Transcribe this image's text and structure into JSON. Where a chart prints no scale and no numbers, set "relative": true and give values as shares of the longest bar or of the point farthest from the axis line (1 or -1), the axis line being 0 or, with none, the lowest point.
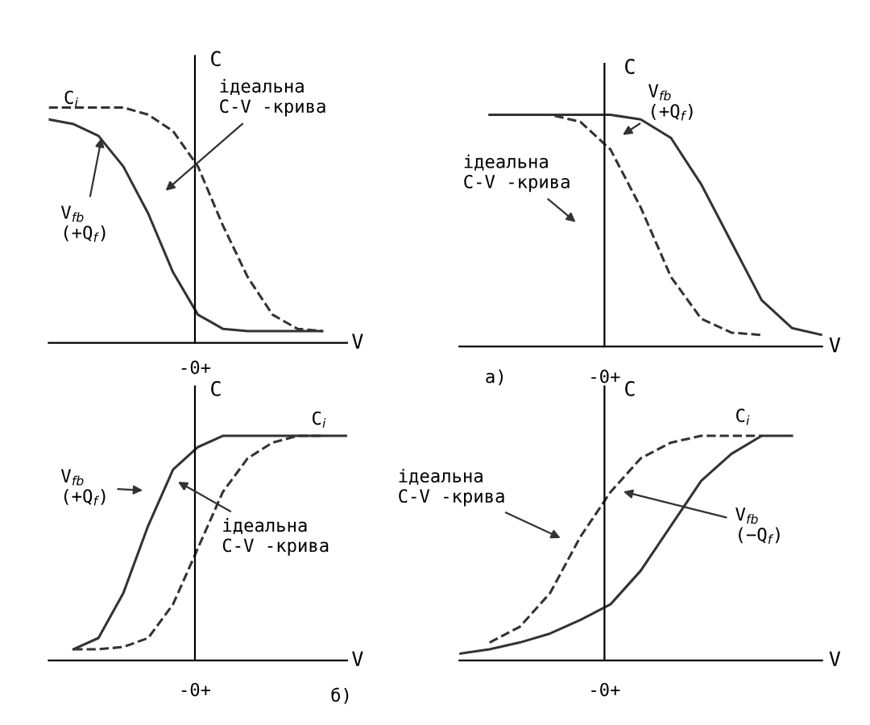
{
  "chart_data": [
    {
      "type": "line",
      "relative": true,
      "xlabel": "V",
      "ylabel": "C",
      "tick_labels": false,
      "categories": [
        null,
        null,
        null,
        null,
        null,
        null,
        null,
        null,
        null,
        null,
        null,
        null,
        null
      ],
      "series": [
        {
          "color": "#333333",
          "line_style": "dashed",
          "values": [
            1,
            1,
            1,
            1,
            0.97,
            0.9,
            0.75,
            0.5,
            0.28,
            0.12,
            0.06,
            0.05,
            null
          ]
        },
        {
          "color": "#333333",
          "line_style": "solid",
          "values": [
            0.95,
            0.93,
            0.88,
            0.75,
            0.55,
            0.3,
            0.12,
            0.06,
            0.05,
            0.05,
            0.05,
            0.05,
            null
          ]
        }
      ],
      "annotations": [
        "C$_{i}$",
        "ідеальна\nC-V -крива",
        "V$_{fb}$\n(+Q$_{f}$)",
        "-0+"
      ]
    },
    {
      "type": "line",
      "relative": true,
      "xlabel": "V",
      "ylabel": "C",
      "tick_labels": false,
      "categories": [
        null,
        null,
        null,
        null,
        null,
        null,
        null,
        null,
        null,
        null,
        null,
        null,
        null
      ],
      "series": [
        {
          "color": "#333333",
          "line_style": "dashed",
          "values": [
            null,
            1,
            1,
            1,
            0.97,
            0.85,
            0.6,
            0.3,
            0.12,
            0.06,
            0.05,
            null,
            null
          ]
        },
        {
          "color": "#333333",
          "line_style": "solid",
          "values": [
            null,
            1,
            1,
            1,
            1,
            1,
            0.98,
            0.9,
            0.7,
            0.45,
            0.2,
            0.08,
            0.05
          ]
        }
      ],
      "annotations": [
        "V$_{fb}$\n(+Q$_{f}$)",
        "ідеальна\nC-V -крива",
        "-0+",
        "а)"
      ]
    },
    {
      "type": "line",
      "relative": true,
      "xlabel": "V",
      "ylabel": "C",
      "tick_labels": false,
      "categories": [
        null,
        null,
        null,
        null,
        null,
        null,
        null,
        null,
        null,
        null,
        null,
        null,
        null
      ],
      "series": [
        {
          "color": "#333333",
          "line_style": "solid",
          "values": [
            null,
            0.05,
            0.1,
            0.3,
            0.6,
            0.85,
            0.95,
            1,
            1,
            1,
            1,
            1,
            1
          ]
        },
        {
          "color": "#333333",
          "line_style": "dashed",
          "values": [
            null,
            0.05,
            0.05,
            0.06,
            0.1,
            0.25,
            0.5,
            0.75,
            0.9,
            0.97,
            1,
            1,
            null
          ]
        }
      ],
      "annotations": [
        "C$_{i}$",
        "V$_{fb}$\n(+Q$_{f}$)",
        "ідеальна\nC-V -крива",
        "-0+",
        "б)"
      ]
    },
    {
      "type": "line",
      "relative": true,
      "xlabel": "V",
      "ylabel": "C",
      "tick_labels": false,
      "categories": [
        null,
        null,
        null,
        null,
        null,
        null,
        null,
        null,
        null,
        null,
        null,
        null,
        null
      ],
      "series": [
        {
          "color": "#333333",
          "line_style": "solid",
          "values": [
            0.03,
            0.05,
            0.08,
            0.12,
            0.18,
            0.25,
            0.4,
            0.6,
            0.8,
            0.92,
            1,
            1,
            null
          ]
        },
        {
          "color": "#333333",
          "line_style": "dashed",
          "values": [
            null,
            0.08,
            0.15,
            0.3,
            0.55,
            0.75,
            0.9,
            0.97,
            1,
            1,
            1,
            null,
            null
          ]
        }
      ],
      "annotations": [
        "C$_{i}$",
        "ідеальна\nC-V -крива",
        "V$_{fb}$\n(−Q$_{f}$)",
        "-0+"
      ]
    }
  ]
}
